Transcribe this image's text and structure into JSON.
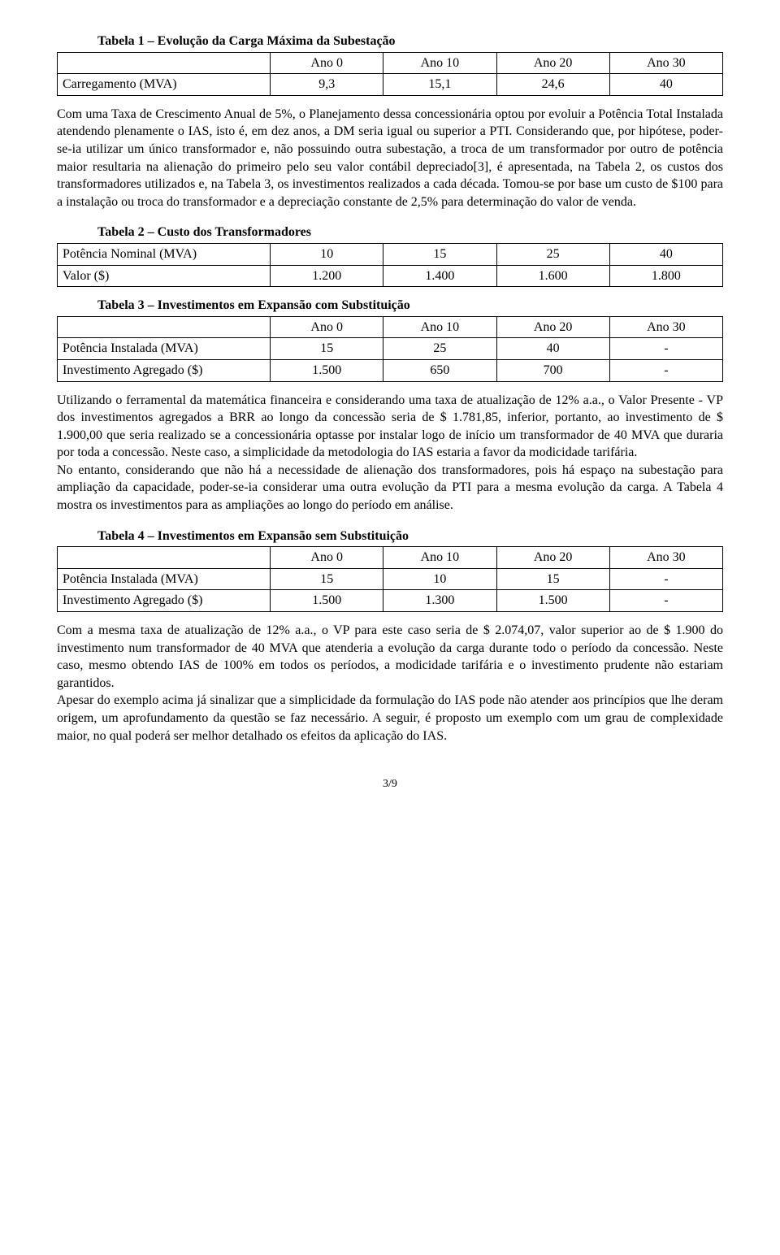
{
  "table1": {
    "title": "Tabela 1 – Evolução da Carga Máxima da Subestação",
    "headers": [
      "",
      "Ano 0",
      "Ano 10",
      "Ano 20",
      "Ano 30"
    ],
    "row_label": "Carregamento (MVA)",
    "row_values": [
      "9,3",
      "15,1",
      "24,6",
      "40"
    ]
  },
  "para1": "Com uma Taxa de Crescimento Anual de 5%, o Planejamento dessa concessionária optou por evoluir a Potência Total Instalada atendendo plenamente o IAS, isto é, em dez anos, a DM seria igual ou superior a PTI. Considerando que, por hipótese, poder-se-ia utilizar um único transformador e, não possuindo outra subestação, a troca de um transformador por outro de potência maior resultaria na alienação do primeiro pelo seu valor contábil depreciado[3], é apresentada, na Tabela 2, os custos dos transformadores utilizados e, na Tabela 3, os investimentos realizados a cada década. Tomou-se por base um custo de $100 para a instalação ou troca do transformador e a depreciação constante de 2,5% para determinação do valor de venda.",
  "table2": {
    "title": "Tabela 2 – Custo dos Transformadores",
    "row1_label": "Potência Nominal (MVA)",
    "row1_values": [
      "10",
      "15",
      "25",
      "40"
    ],
    "row2_label": "Valor ($)",
    "row2_values": [
      "1.200",
      "1.400",
      "1.600",
      "1.800"
    ]
  },
  "table3": {
    "title": "Tabela 3 – Investimentos em Expansão com Substituição",
    "headers": [
      "",
      "Ano 0",
      "Ano 10",
      "Ano 20",
      "Ano 30"
    ],
    "row1_label": "Potência Instalada (MVA)",
    "row1_values": [
      "15",
      "25",
      "40",
      "-"
    ],
    "row2_label": "Investimento Agregado ($)",
    "row2_values": [
      "1.500",
      "650",
      "700",
      "-"
    ]
  },
  "para2": "Utilizando o ferramental da matemática financeira e considerando uma taxa de atualização de 12% a.a., o Valor Presente - VP dos investimentos agregados a BRR ao longo da concessão seria de $ 1.781,85, inferior, portanto, ao investimento de $ 1.900,00 que seria realizado se a concessionária optasse por instalar logo de início um transformador de 40 MVA que duraria por toda a concessão. Neste caso, a simplicidade da metodologia do IAS estaria a favor da modicidade tarifária.",
  "para3": "No entanto, considerando que não há a necessidade de alienação dos transformadores, pois há espaço na subestação para ampliação da capacidade, poder-se-ia considerar uma outra evolução da PTI para a mesma evolução da carga. A Tabela 4 mostra os investimentos para as ampliações ao longo do período em análise.",
  "table4": {
    "title": "Tabela 4 – Investimentos em Expansão sem Substituição",
    "headers": [
      "",
      "Ano 0",
      "Ano 10",
      "Ano 20",
      "Ano 30"
    ],
    "row1_label": "Potência Instalada (MVA)",
    "row1_values": [
      "15",
      "10",
      "15",
      "-"
    ],
    "row2_label": "Investimento Agregado ($)",
    "row2_values": [
      "1.500",
      "1.300",
      "1.500",
      "-"
    ]
  },
  "para4": "Com a mesma taxa de atualização de 12% a.a., o VP para este caso seria de $ 2.074,07, valor superior ao de $ 1.900 do investimento num transformador de 40 MVA que atenderia a evolução da carga durante todo o período da concessão. Neste caso, mesmo obtendo IAS de 100% em todos os períodos, a modicidade tarifária e o investimento prudente não estariam garantidos.",
  "para5": "Apesar do exemplo acima já sinalizar que a simplicidade da formulação do IAS pode não atender aos princípios que lhe deram origem, um aprofundamento da questão se faz necessário. A seguir, é proposto um exemplo com um grau de complexidade maior, no qual poderá ser melhor detalhado os efeitos da aplicação do IAS.",
  "pagenum": "3/9"
}
